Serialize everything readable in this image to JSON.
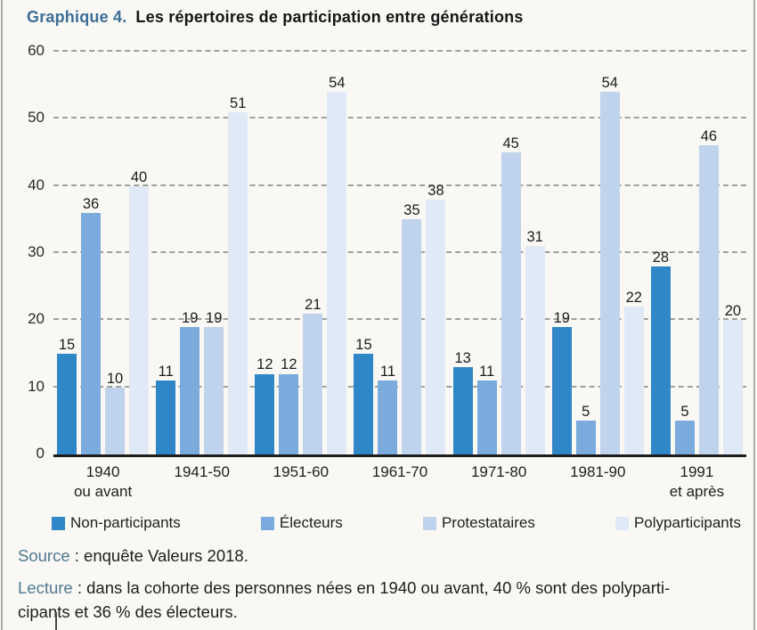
{
  "title": {
    "prefix": "Graphique 4.",
    "text": "Les répertoires de participation entre générations"
  },
  "chart_data": {
    "type": "bar",
    "title": "Les répertoires de participation entre générations",
    "categories": [
      [
        "1940",
        "ou avant"
      ],
      [
        "1941-50"
      ],
      [
        "1951-60"
      ],
      [
        "1961-70"
      ],
      [
        "1971-80"
      ],
      [
        "1981-90"
      ],
      [
        "1991",
        "et après"
      ]
    ],
    "series": [
      {
        "name": "Non-participants",
        "color": "#2f87c8",
        "values": [
          15,
          11,
          12,
          15,
          13,
          19,
          28
        ]
      },
      {
        "name": "Électeurs",
        "color": "#7aabdc",
        "values": [
          36,
          19,
          12,
          11,
          11,
          5,
          5
        ]
      },
      {
        "name": "Protestataires",
        "color": "#c0d3ed",
        "values": [
          10,
          19,
          21,
          35,
          45,
          54,
          46
        ]
      },
      {
        "name": "Polyparticipants",
        "color": "#dfeaf6",
        "values": [
          40,
          51,
          54,
          38,
          31,
          22,
          20
        ]
      }
    ],
    "ylim": [
      0,
      60
    ],
    "yticks": [
      0,
      10,
      20,
      30,
      40,
      50,
      60
    ],
    "grid": "horizontal-dashed",
    "legend_position": "bottom",
    "value_labels": true,
    "xlabel": "",
    "ylabel": ""
  },
  "source": {
    "label": "Source",
    "text": " : enquête Valeurs 2018."
  },
  "lecture": {
    "label": "Lecture",
    "line1": " : dans la cohorte des personnes nées en 1940 ou avant, 40 % sont des polyparti-",
    "line2": "cipants et 36 % des électeurs."
  }
}
